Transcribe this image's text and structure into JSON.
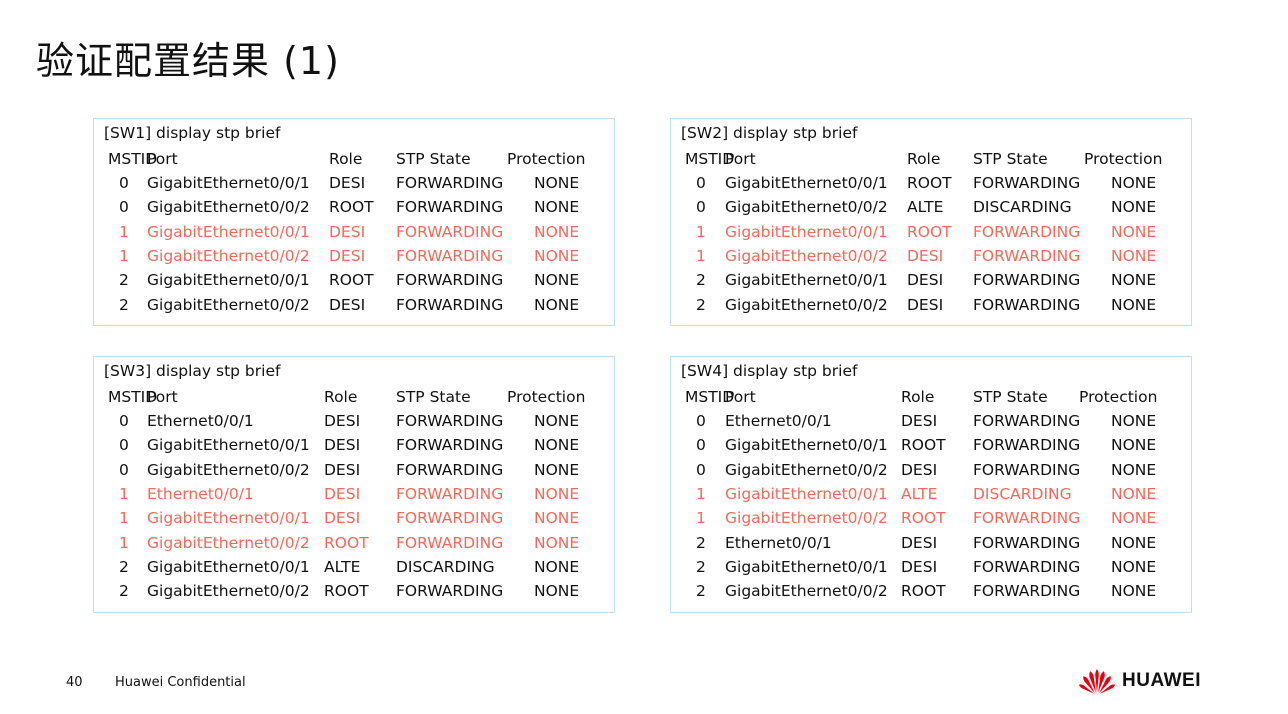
{
  "title": "验证配置结果 (1)",
  "panels": [
    {
      "command": "[SW1] display stp brief",
      "headers": {
        "mstid": "MSTID",
        "port": "Port",
        "role": "Role",
        "state": "STP State",
        "protection": "Protection"
      },
      "rows": [
        {
          "mstid": "0",
          "port": "GigabitEthernet0/0/1",
          "role": "DESI",
          "state": "FORWARDING",
          "protection": "NONE",
          "highlight": false
        },
        {
          "mstid": "0",
          "port": "GigabitEthernet0/0/2",
          "role": "ROOT",
          "state": "FORWARDING",
          "protection": "NONE",
          "highlight": false
        },
        {
          "mstid": "1",
          "port": "GigabitEthernet0/0/1",
          "role": "DESI",
          "state": "FORWARDING",
          "protection": "NONE",
          "highlight": true
        },
        {
          "mstid": "1",
          "port": "GigabitEthernet0/0/2",
          "role": "DESI",
          "state": "FORWARDING",
          "protection": "NONE",
          "highlight": true
        },
        {
          "mstid": "2",
          "port": "GigabitEthernet0/0/1",
          "role": "ROOT",
          "state": "FORWARDING",
          "protection": "NONE",
          "highlight": false
        },
        {
          "mstid": "2",
          "port": "GigabitEthernet0/0/2",
          "role": "DESI",
          "state": "FORWARDING",
          "protection": "NONE",
          "highlight": false
        }
      ]
    },
    {
      "command": "[SW2] display stp brief",
      "headers": {
        "mstid": "MSTID",
        "port": "Port",
        "role": "Role",
        "state": "STP State",
        "protection": "Protection"
      },
      "rows": [
        {
          "mstid": "0",
          "port": "GigabitEthernet0/0/1",
          "role": "ROOT",
          "state": "FORWARDING",
          "protection": "NONE",
          "highlight": false
        },
        {
          "mstid": "0",
          "port": "GigabitEthernet0/0/2",
          "role": "ALTE",
          "state": "DISCARDING",
          "protection": "NONE",
          "highlight": false
        },
        {
          "mstid": "1",
          "port": "GigabitEthernet0/0/1",
          "role": "ROOT",
          "state": "FORWARDING",
          "protection": "NONE",
          "highlight": true
        },
        {
          "mstid": "1",
          "port": "GigabitEthernet0/0/2",
          "role": "DESI",
          "state": "FORWARDING",
          "protection": "NONE",
          "highlight": true
        },
        {
          "mstid": "2",
          "port": "GigabitEthernet0/0/1",
          "role": "DESI",
          "state": "FORWARDING",
          "protection": "NONE",
          "highlight": false
        },
        {
          "mstid": "2",
          "port": "GigabitEthernet0/0/2",
          "role": "DESI",
          "state": "FORWARDING",
          "protection": "NONE",
          "highlight": false
        }
      ]
    },
    {
      "command": "[SW3] display stp brief",
      "headers": {
        "mstid": "MSTID",
        "port": "Port",
        "role": "Role",
        "state": "STP State",
        "protection": "Protection"
      },
      "rows": [
        {
          "mstid": "0",
          "port": "Ethernet0/0/1",
          "role": "DESI",
          "state": "FORWARDING",
          "protection": "NONE",
          "highlight": false
        },
        {
          "mstid": "0",
          "port": "GigabitEthernet0/0/1",
          "role": "DESI",
          "state": "FORWARDING",
          "protection": "NONE",
          "highlight": false
        },
        {
          "mstid": "0",
          "port": "GigabitEthernet0/0/2",
          "role": "DESI",
          "state": "FORWARDING",
          "protection": "NONE",
          "highlight": false
        },
        {
          "mstid": "1",
          "port": "Ethernet0/0/1",
          "role": "DESI",
          "state": "FORWARDING",
          "protection": "NONE",
          "highlight": true
        },
        {
          "mstid": "1",
          "port": "GigabitEthernet0/0/1",
          "role": "DESI",
          "state": "FORWARDING",
          "protection": "NONE",
          "highlight": true
        },
        {
          "mstid": "1",
          "port": "GigabitEthernet0/0/2",
          "role": "ROOT",
          "state": "FORWARDING",
          "protection": "NONE",
          "highlight": true
        },
        {
          "mstid": "2",
          "port": "GigabitEthernet0/0/1",
          "role": "ALTE",
          "state": "DISCARDING",
          "protection": "NONE",
          "highlight": false
        },
        {
          "mstid": "2",
          "port": "GigabitEthernet0/0/2",
          "role": "ROOT",
          "state": "FORWARDING",
          "protection": "NONE",
          "highlight": false
        }
      ]
    },
    {
      "command": "[SW4] display stp brief",
      "headers": {
        "mstid": "MSTID",
        "port": "Port",
        "role": "Role",
        "state": "STP State",
        "protection": "Protection"
      },
      "rows": [
        {
          "mstid": "0",
          "port": "Ethernet0/0/1",
          "role": "DESI",
          "state": "FORWARDING",
          "protection": "NONE",
          "highlight": false
        },
        {
          "mstid": "0",
          "port": "GigabitEthernet0/0/1",
          "role": "ROOT",
          "state": "FORWARDING",
          "protection": "NONE",
          "highlight": false
        },
        {
          "mstid": "0",
          "port": "GigabitEthernet0/0/2",
          "role": "DESI",
          "state": "FORWARDING",
          "protection": "NONE",
          "highlight": false
        },
        {
          "mstid": "1",
          "port": "GigabitEthernet0/0/1",
          "role": "ALTE",
          "state": "DISCARDING",
          "protection": "NONE",
          "highlight": true
        },
        {
          "mstid": "1",
          "port": "GigabitEthernet0/0/2",
          "role": "ROOT",
          "state": "FORWARDING",
          "protection": "NONE",
          "highlight": true
        },
        {
          "mstid": "2",
          "port": "Ethernet0/0/1",
          "role": "DESI",
          "state": "FORWARDING",
          "protection": "NONE",
          "highlight": false
        },
        {
          "mstid": "2",
          "port": "GigabitEthernet0/0/1",
          "role": "DESI",
          "state": "FORWARDING",
          "protection": "NONE",
          "highlight": false
        },
        {
          "mstid": "2",
          "port": "GigabitEthernet0/0/2",
          "role": "ROOT",
          "state": "FORWARDING",
          "protection": "NONE",
          "highlight": false
        }
      ]
    }
  ],
  "footer": {
    "page": "40",
    "confidential": "Huawei Confidential"
  },
  "logo": {
    "text": "HUAWEI",
    "icon": "huawei-petal-logo-icon",
    "color": "#e60012"
  },
  "colors": {
    "highlight": "#f06a5b",
    "panel_border": "#bfe0f3"
  }
}
